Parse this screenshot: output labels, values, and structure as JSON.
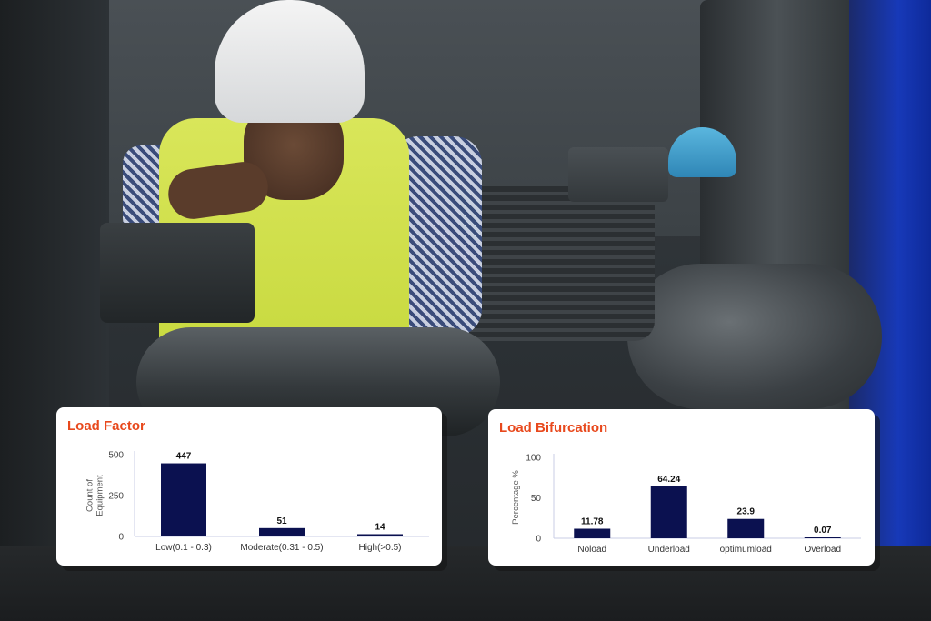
{
  "colors": {
    "bar": "#0b1150",
    "title": "#e8491d",
    "axis": "#c9cde6"
  },
  "chart_data": [
    {
      "type": "bar",
      "title": "Load Factor",
      "ylabel": [
        "Count of",
        "Equipment"
      ],
      "categories": [
        "Low(0.1 - 0.3)",
        "Moderate(0.31 - 0.5)",
        "High(>0.5)"
      ],
      "values": [
        447,
        51,
        14
      ],
      "data_labels": [
        "447",
        "51",
        "14"
      ],
      "ylim": [
        0,
        500
      ],
      "yticks": [
        0,
        250,
        500
      ],
      "grid": false
    },
    {
      "type": "bar",
      "title": "Load Bifurcation",
      "ylabel": [
        "Percentage %"
      ],
      "categories": [
        "Noload",
        "Underload",
        "optimumload",
        "Overload"
      ],
      "values": [
        11.78,
        64.24,
        23.9,
        0.07
      ],
      "data_labels": [
        "11.78",
        "64.24",
        "23.9",
        "0.07"
      ],
      "ylim": [
        0,
        100
      ],
      "yticks": [
        0,
        50,
        100
      ],
      "grid": false
    }
  ]
}
